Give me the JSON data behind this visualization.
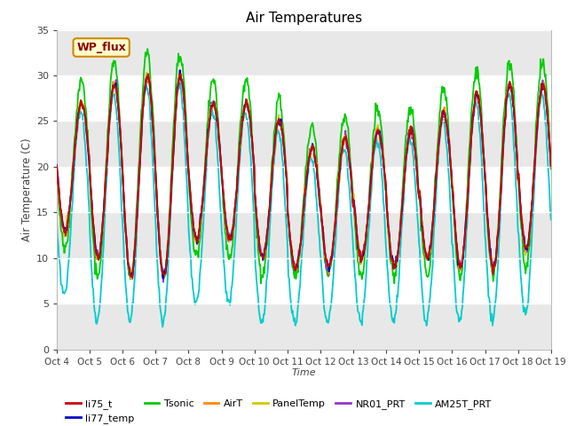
{
  "title": "Air Temperatures",
  "xlabel": "Time",
  "ylabel": "Air Temperature (C)",
  "ylim": [
    0,
    35
  ],
  "yticks": [
    0,
    5,
    10,
    15,
    20,
    25,
    30,
    35
  ],
  "x_labels": [
    "Oct 4",
    "Oct 5",
    "Oct 6",
    "Oct 7",
    "Oct 8",
    "Oct 9",
    "Oct 10",
    "Oct 11",
    "Oct 12",
    "Oct 13",
    "Oct 14",
    "Oct 15",
    "Oct 16",
    "Oct 17",
    "Oct 18",
    "Oct 19"
  ],
  "annotation_text": "WP_flux",
  "colors": {
    "li75_t": "#cc0000",
    "li77_temp": "#0000cc",
    "Tsonic": "#00cc00",
    "AirT": "#ff8800",
    "PanelTemp": "#cccc00",
    "NR01_PRT": "#9933cc",
    "AM25T_PRT": "#00cccc"
  },
  "fig_bg": "#ffffff",
  "plot_bg": "#ffffff",
  "band_color": "#e8e8e8"
}
